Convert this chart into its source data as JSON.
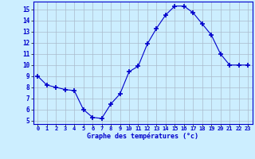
{
  "hours": [
    0,
    1,
    2,
    3,
    4,
    5,
    6,
    7,
    8,
    9,
    10,
    11,
    12,
    13,
    14,
    15,
    16,
    17,
    18,
    19,
    20,
    21,
    22,
    23
  ],
  "temperatures": [
    9.0,
    8.2,
    8.0,
    7.8,
    7.7,
    6.0,
    5.3,
    5.2,
    6.5,
    7.4,
    9.4,
    9.9,
    11.9,
    13.3,
    14.5,
    15.3,
    15.3,
    14.7,
    13.7,
    12.7,
    11.0,
    10.0,
    10.0,
    10.0
  ],
  "xlabel": "Graphe des températures (°c)",
  "yticks": [
    5,
    6,
    7,
    8,
    9,
    10,
    11,
    12,
    13,
    14,
    15
  ],
  "xticks": [
    0,
    1,
    2,
    3,
    4,
    5,
    6,
    7,
    8,
    9,
    10,
    11,
    12,
    13,
    14,
    15,
    16,
    17,
    18,
    19,
    20,
    21,
    22,
    23
  ],
  "line_color": "#0000cc",
  "marker": "+",
  "marker_size": 5,
  "background_color": "#cceeff",
  "grid_color": "#aabbcc",
  "axis_label_color": "#0000cc",
  "tick_label_color": "#0000cc",
  "border_color": "#0000cc"
}
